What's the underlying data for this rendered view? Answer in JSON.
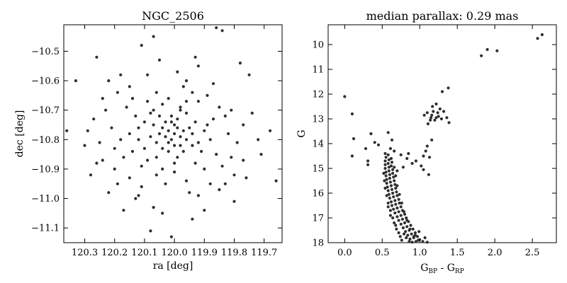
{
  "chart_data": [
    {
      "type": "scatter",
      "title": "NGC_2506",
      "xlabel": "ra [deg]",
      "ylabel": "dec [deg]",
      "xlim": [
        120.37,
        119.64
      ],
      "ylim": [
        -11.15,
        -10.41
      ],
      "x_inverted": true,
      "xticks": [
        {
          "v": 120.3,
          "label": "120.3"
        },
        {
          "v": 120.2,
          "label": "120.2"
        },
        {
          "v": 120.1,
          "label": "120.1"
        },
        {
          "v": 120.0,
          "label": "120.0"
        },
        {
          "v": 119.9,
          "label": "119.9"
        },
        {
          "v": 119.8,
          "label": "119.8"
        },
        {
          "v": 119.7,
          "label": "119.7"
        }
      ],
      "yticks": [
        {
          "v": -10.5,
          "label": "−10.5"
        },
        {
          "v": -10.6,
          "label": "−10.6"
        },
        {
          "v": -10.7,
          "label": "−10.7"
        },
        {
          "v": -10.8,
          "label": "−10.8"
        },
        {
          "v": -10.9,
          "label": "−10.9"
        },
        {
          "v": -11.0,
          "label": "−11.0"
        },
        {
          "v": -11.1,
          "label": "−11.1"
        }
      ],
      "grid": false,
      "color": "#2f2f2f",
      "points": [
        [
          119.84,
          -10.43
        ],
        [
          119.86,
          -10.42
        ],
        [
          120.11,
          -10.48
        ],
        [
          120.07,
          -10.45
        ],
        [
          120.26,
          -10.52
        ],
        [
          120.18,
          -10.58
        ],
        [
          119.92,
          -10.55
        ],
        [
          119.78,
          -10.54
        ],
        [
          120.33,
          -10.6
        ],
        [
          120.36,
          -10.77
        ],
        [
          119.68,
          -10.77
        ],
        [
          119.75,
          -10.58
        ],
        [
          120.27,
          -10.73
        ],
        [
          120.3,
          -10.82
        ],
        [
          120.28,
          -10.92
        ],
        [
          120.24,
          -10.87
        ],
        [
          120.22,
          -10.98
        ],
        [
          120.17,
          -11.04
        ],
        [
          120.07,
          -11.03
        ],
        [
          120.04,
          -11.05
        ],
        [
          119.94,
          -11.07
        ],
        [
          119.9,
          -11.04
        ],
        [
          119.8,
          -11.01
        ],
        [
          119.76,
          -10.93
        ],
        [
          119.71,
          -10.85
        ],
        [
          119.66,
          -10.94
        ],
        [
          120.01,
          -11.13
        ],
        [
          120.08,
          -11.11
        ],
        [
          119.85,
          -10.97
        ],
        [
          120.13,
          -11.0
        ],
        [
          120.19,
          -10.64
        ],
        [
          120.15,
          -10.62
        ],
        [
          119.96,
          -10.6
        ],
        [
          119.89,
          -10.65
        ],
        [
          120.23,
          -10.7
        ],
        [
          119.83,
          -10.72
        ],
        [
          119.81,
          -10.86
        ],
        [
          120.2,
          -10.9
        ],
        [
          120.11,
          -10.96
        ],
        [
          119.95,
          -10.98
        ],
        [
          120.04,
          -10.68
        ],
        [
          119.98,
          -10.69
        ],
        [
          120.07,
          -10.7
        ],
        [
          120.09,
          -10.87
        ],
        [
          119.93,
          -10.88
        ],
        [
          120.15,
          -10.78
        ],
        [
          119.88,
          -10.8
        ],
        [
          120.0,
          -10.91
        ],
        [
          120.06,
          -10.92
        ],
        [
          119.97,
          -10.62
        ],
        [
          120.0,
          -10.78
        ],
        [
          120.02,
          -10.77
        ],
        [
          119.98,
          -10.79
        ],
        [
          120.01,
          -10.8
        ],
        [
          119.99,
          -10.76
        ],
        [
          120.03,
          -10.79
        ],
        [
          120.0,
          -10.75
        ],
        [
          119.97,
          -10.77
        ],
        [
          120.02,
          -10.81
        ],
        [
          120.01,
          -10.74
        ],
        [
          119.98,
          -10.82
        ],
        [
          120.04,
          -10.76
        ],
        [
          119.96,
          -10.8
        ],
        [
          120.0,
          -10.82
        ],
        [
          120.03,
          -10.74
        ],
        [
          119.99,
          -10.73
        ],
        [
          120.05,
          -10.78
        ],
        [
          119.95,
          -10.76
        ],
        [
          120.02,
          -10.84
        ],
        [
          119.97,
          -10.84
        ],
        [
          120.06,
          -10.81
        ],
        [
          119.94,
          -10.78
        ],
        [
          120.04,
          -10.83
        ],
        [
          120.01,
          -10.72
        ],
        [
          119.99,
          -10.86
        ],
        [
          120.07,
          -10.75
        ],
        [
          119.93,
          -10.74
        ],
        [
          120.05,
          -10.72
        ],
        [
          119.96,
          -10.71
        ],
        [
          120.08,
          -10.79
        ],
        [
          120.12,
          -10.76
        ],
        [
          119.9,
          -10.77
        ],
        [
          120.1,
          -10.83
        ],
        [
          119.91,
          -10.84
        ],
        [
          120.13,
          -10.72
        ],
        [
          119.87,
          -10.73
        ],
        [
          120.09,
          -10.67
        ],
        [
          119.92,
          -10.67
        ],
        [
          120.14,
          -10.84
        ],
        [
          119.86,
          -10.85
        ],
        [
          120.16,
          -10.69
        ],
        [
          119.85,
          -10.69
        ],
        [
          120.11,
          -10.89
        ],
        [
          119.9,
          -10.9
        ],
        [
          120.18,
          -10.8
        ],
        [
          119.82,
          -10.78
        ],
        [
          120.21,
          -10.76
        ],
        [
          119.79,
          -10.81
        ],
        [
          120.06,
          -10.64
        ],
        [
          119.94,
          -10.64
        ],
        [
          120.03,
          -10.95
        ],
        [
          119.96,
          -10.94
        ],
        [
          120.25,
          -10.81
        ],
        [
          119.77,
          -10.75
        ],
        [
          120.02,
          -10.66
        ],
        [
          120.0,
          -10.88
        ],
        [
          119.98,
          -10.7
        ],
        [
          120.06,
          -10.86
        ],
        [
          119.94,
          -10.82
        ],
        [
          120.1,
          -10.74
        ],
        [
          119.92,
          -10.81
        ],
        [
          120.08,
          -10.71
        ],
        [
          120.04,
          -10.9
        ],
        [
          119.96,
          -10.67
        ],
        [
          120.12,
          -10.8
        ],
        [
          119.89,
          -10.75
        ],
        [
          120.14,
          -10.66
        ],
        [
          119.84,
          -10.89
        ],
        [
          120.17,
          -10.86
        ],
        [
          119.81,
          -10.7
        ],
        [
          120.2,
          -10.83
        ],
        [
          119.8,
          -10.92
        ],
        [
          120.24,
          -10.66
        ],
        [
          119.74,
          -10.71
        ],
        [
          120.22,
          -10.6
        ],
        [
          119.87,
          -10.61
        ],
        [
          120.29,
          -10.77
        ],
        [
          119.72,
          -10.8
        ],
        [
          120.15,
          -10.93
        ],
        [
          119.88,
          -10.95
        ],
        [
          120.09,
          -10.58
        ],
        [
          119.99,
          -10.57
        ],
        [
          120.19,
          -10.95
        ],
        [
          119.83,
          -10.95
        ],
        [
          120.26,
          -10.88
        ],
        [
          119.77,
          -10.87
        ],
        [
          120.12,
          -10.99
        ],
        [
          119.92,
          -10.99
        ],
        [
          120.05,
          -10.53
        ],
        [
          119.93,
          -10.52
        ]
      ]
    },
    {
      "type": "scatter",
      "title": "median parallax: 0.29 mas",
      "xlabel_main": "G",
      "xlabel_sub1": "BP",
      "xlabel_mid": " - G",
      "xlabel_sub2": "RP",
      "ylabel": "G",
      "xlim": [
        -0.22,
        2.82
      ],
      "ylim": [
        18,
        9.2
      ],
      "y_inverted": true,
      "xticks": [
        {
          "v": 0.0,
          "label": "0.0"
        },
        {
          "v": 0.5,
          "label": "0.5"
        },
        {
          "v": 1.0,
          "label": "1.0"
        },
        {
          "v": 1.5,
          "label": "1.5"
        },
        {
          "v": 2.0,
          "label": "2.0"
        },
        {
          "v": 2.5,
          "label": "2.5"
        }
      ],
      "yticks": [
        {
          "v": 10,
          "label": "10"
        },
        {
          "v": 11,
          "label": "11"
        },
        {
          "v": 12,
          "label": "12"
        },
        {
          "v": 13,
          "label": "13"
        },
        {
          "v": 14,
          "label": "14"
        },
        {
          "v": 15,
          "label": "15"
        },
        {
          "v": 16,
          "label": "16"
        },
        {
          "v": 17,
          "label": "17"
        },
        {
          "v": 18,
          "label": "18"
        }
      ],
      "grid": false,
      "color": "#2f2f2f",
      "points": [
        [
          2.63,
          9.6
        ],
        [
          2.57,
          9.75
        ],
        [
          1.9,
          10.2
        ],
        [
          2.03,
          10.25
        ],
        [
          1.82,
          10.45
        ],
        [
          0.0,
          12.1
        ],
        [
          0.1,
          12.8
        ],
        [
          0.12,
          13.8
        ],
        [
          0.1,
          14.5
        ],
        [
          0.35,
          13.6
        ],
        [
          0.28,
          14.2
        ],
        [
          0.31,
          14.7
        ],
        [
          0.31,
          14.85
        ],
        [
          0.4,
          13.95
        ],
        [
          0.45,
          14.05
        ],
        [
          0.58,
          13.55
        ],
        [
          0.63,
          13.85
        ],
        [
          0.61,
          14.2
        ],
        [
          0.66,
          14.3
        ],
        [
          0.75,
          14.45
        ],
        [
          0.85,
          14.4
        ],
        [
          0.83,
          14.6
        ],
        [
          0.95,
          14.7
        ],
        [
          0.9,
          14.8
        ],
        [
          1.02,
          14.9
        ],
        [
          1.05,
          14.5
        ],
        [
          1.08,
          14.3
        ],
        [
          1.1,
          14.1
        ],
        [
          1.16,
          13.85
        ],
        [
          1.13,
          14.55
        ],
        [
          1.05,
          15.05
        ],
        [
          1.12,
          15.25
        ],
        [
          0.78,
          14.95
        ],
        [
          0.7,
          15.1
        ],
        [
          1.06,
          12.85
        ],
        [
          1.1,
          12.75
        ],
        [
          1.15,
          12.95
        ],
        [
          1.18,
          12.7
        ],
        [
          1.22,
          12.95
        ],
        [
          1.25,
          12.9
        ],
        [
          1.14,
          13.05
        ],
        [
          1.2,
          13.05
        ],
        [
          1.27,
          12.6
        ],
        [
          1.32,
          12.7
        ],
        [
          1.36,
          12.95
        ],
        [
          1.39,
          13.15
        ],
        [
          1.29,
          13.0
        ],
        [
          1.17,
          12.5
        ],
        [
          1.22,
          12.4
        ],
        [
          1.3,
          11.9
        ],
        [
          1.38,
          11.75
        ],
        [
          1.16,
          12.85
        ],
        [
          1.24,
          12.75
        ],
        [
          1.11,
          13.2
        ],
        [
          0.54,
          14.4
        ],
        [
          0.55,
          14.55
        ],
        [
          0.54,
          14.7
        ],
        [
          0.54,
          14.85
        ],
        [
          0.54,
          15.0
        ],
        [
          0.55,
          15.15
        ],
        [
          0.55,
          15.3
        ],
        [
          0.56,
          15.45
        ],
        [
          0.56,
          15.6
        ],
        [
          0.57,
          15.75
        ],
        [
          0.58,
          15.9
        ],
        [
          0.59,
          16.05
        ],
        [
          0.6,
          16.2
        ],
        [
          0.62,
          16.35
        ],
        [
          0.63,
          16.5
        ],
        [
          0.65,
          16.65
        ],
        [
          0.67,
          16.8
        ],
        [
          0.7,
          16.95
        ],
        [
          0.72,
          17.1
        ],
        [
          0.75,
          17.25
        ],
        [
          0.78,
          17.4
        ],
        [
          0.81,
          17.55
        ],
        [
          0.84,
          17.7
        ],
        [
          0.87,
          17.85
        ],
        [
          0.9,
          17.98
        ],
        [
          0.58,
          14.45
        ],
        [
          0.59,
          14.65
        ],
        [
          0.58,
          14.8
        ],
        [
          0.59,
          14.95
        ],
        [
          0.59,
          15.1
        ],
        [
          0.6,
          15.25
        ],
        [
          0.6,
          15.4
        ],
        [
          0.61,
          15.55
        ],
        [
          0.62,
          15.7
        ],
        [
          0.63,
          15.85
        ],
        [
          0.64,
          16.0
        ],
        [
          0.65,
          16.15
        ],
        [
          0.67,
          16.3
        ],
        [
          0.68,
          16.45
        ],
        [
          0.7,
          16.6
        ],
        [
          0.72,
          16.75
        ],
        [
          0.75,
          16.9
        ],
        [
          0.77,
          17.05
        ],
        [
          0.8,
          17.2
        ],
        [
          0.83,
          17.35
        ],
        [
          0.86,
          17.5
        ],
        [
          0.89,
          17.65
        ],
        [
          0.92,
          17.8
        ],
        [
          0.95,
          17.95
        ],
        [
          0.98,
          17.9
        ],
        [
          0.62,
          14.6
        ],
        [
          0.63,
          14.75
        ],
        [
          0.62,
          14.9
        ],
        [
          0.64,
          15.05
        ],
        [
          0.64,
          15.2
        ],
        [
          0.65,
          15.35
        ],
        [
          0.66,
          15.5
        ],
        [
          0.67,
          15.65
        ],
        [
          0.68,
          15.8
        ],
        [
          0.69,
          15.95
        ],
        [
          0.7,
          16.1
        ],
        [
          0.72,
          16.25
        ],
        [
          0.73,
          16.4
        ],
        [
          0.75,
          16.55
        ],
        [
          0.77,
          16.7
        ],
        [
          0.8,
          16.85
        ],
        [
          0.82,
          17.0
        ],
        [
          0.85,
          17.15
        ],
        [
          0.88,
          17.3
        ],
        [
          0.91,
          17.45
        ],
        [
          0.94,
          17.6
        ],
        [
          0.97,
          17.75
        ],
        [
          1.0,
          17.88
        ],
        [
          1.04,
          17.95
        ],
        [
          0.52,
          15.2
        ],
        [
          0.53,
          15.5
        ],
        [
          0.54,
          15.8
        ],
        [
          0.56,
          16.1
        ],
        [
          0.58,
          16.4
        ],
        [
          0.61,
          16.7
        ],
        [
          0.64,
          17.0
        ],
        [
          0.68,
          17.3
        ],
        [
          0.72,
          17.6
        ],
        [
          0.76,
          17.9
        ],
        [
          0.66,
          14.95
        ],
        [
          0.68,
          15.3
        ],
        [
          0.7,
          15.7
        ],
        [
          0.73,
          16.05
        ],
        [
          0.76,
          16.4
        ],
        [
          0.79,
          16.75
        ],
        [
          0.83,
          17.1
        ],
        [
          0.87,
          17.45
        ],
        [
          0.92,
          17.75
        ],
        [
          1.07,
          17.8
        ],
        [
          1.1,
          17.98
        ],
        [
          0.86,
          17.95
        ],
        [
          0.82,
          17.8
        ],
        [
          0.79,
          17.65
        ],
        [
          0.94,
          17.7
        ],
        [
          0.99,
          17.55
        ],
        [
          0.58,
          16.55
        ],
        [
          0.61,
          16.9
        ],
        [
          0.66,
          17.2
        ],
        [
          0.69,
          17.45
        ],
        [
          0.74,
          17.75
        ]
      ]
    }
  ]
}
